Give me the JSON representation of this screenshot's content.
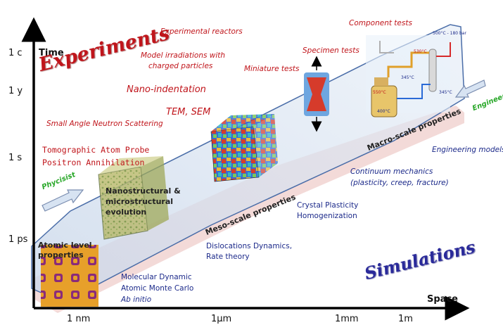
{
  "axes": {
    "y_title": "Time",
    "x_title": "Space",
    "y_ticks": [
      "1 c",
      "1 y",
      "1 s",
      "1 ps"
    ],
    "x_ticks": [
      "1 nm",
      "1µm",
      "1mm",
      "1m"
    ]
  },
  "headings": {
    "experiments": "Experiments",
    "simulations": "Simulations"
  },
  "actors": {
    "physicist": "Phycisist",
    "engineer": "Engineer"
  },
  "experiments": {
    "reactors": "Experimental reactors",
    "component_tests": "Component tests",
    "model_irradiations_1": "Model irradiations with",
    "model_irradiations_2": "charged particles",
    "specimen_tests": "Specimen tests",
    "miniature_tests": "Miniature tests",
    "nano_indentation": "Nano-indentation",
    "tem_sem": "TEM, SEM",
    "sans": "Small Angle Neutron Scattering",
    "atom_probe": "Tomographic Atom Probe",
    "positron": "Positron Annihilation"
  },
  "scales": {
    "atomic_1": "Atomic level",
    "atomic_2": "properties",
    "nano_1": "Nanostructural &",
    "nano_2": "microstructural",
    "nano_3": "evolution",
    "meso": "Meso-scale properties",
    "macro": "Macro-scale properties"
  },
  "simulations": {
    "engineering_models": "Engineering models",
    "continuum_1": "Continuum mechanics",
    "continuum_2": "(plasticity, creep, fracture)",
    "crystal_1": "Crystal Plasticity",
    "crystal_2": "Homogenization",
    "dislocations_1": "Dislocations Dynamics,",
    "dislocations_2": "Rate theory",
    "md_1": "Molecular Dynamic",
    "md_2": "Atomic Monte Carlo",
    "ab_initio": "Ab initio"
  },
  "plant_labels": {
    "p1": "500°C - 180 bar",
    "p2": "530°C",
    "p3": "345°C",
    "p4": "550°C",
    "p5": "400°C",
    "p6": "345°C"
  }
}
